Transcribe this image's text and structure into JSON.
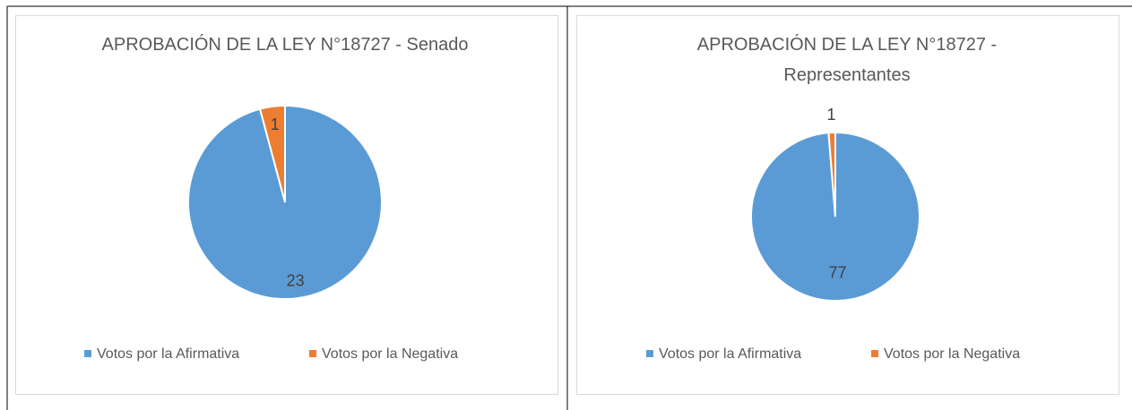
{
  "chart_data": [
    {
      "type": "pie",
      "title": "APROBACIÓN DE LA LEY N°18727 - Senado",
      "categories": [
        "Votos por la Afirmativa",
        "Votos por la Negativa"
      ],
      "values": [
        23,
        1
      ],
      "colors": [
        "#5b9bd5",
        "#ed7d31"
      ]
    },
    {
      "type": "pie",
      "title": "APROBACIÓN DE LA LEY N°18727 - Representantes",
      "categories": [
        "Votos por la Afirmativa",
        "Votos por la Negativa"
      ],
      "values": [
        77,
        1
      ],
      "colors": [
        "#5b9bd5",
        "#ed7d31"
      ]
    }
  ]
}
